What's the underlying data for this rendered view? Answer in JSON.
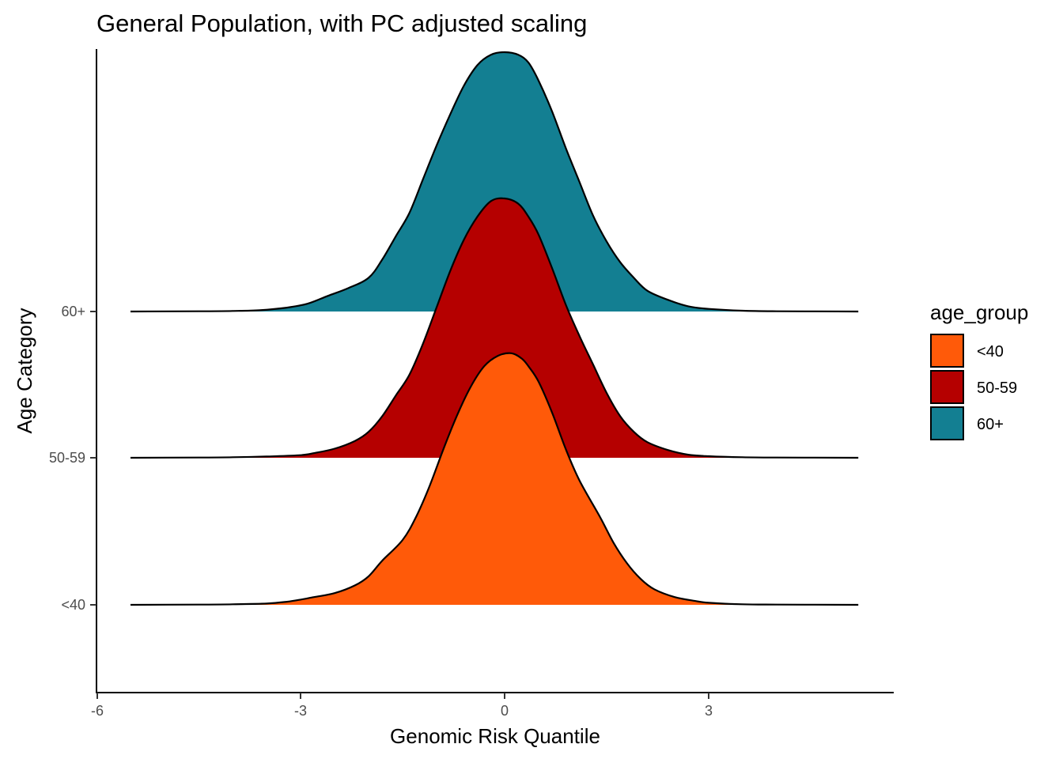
{
  "chart_data": {
    "type": "ridgeline-density",
    "title": "General Population, with PC adjusted scaling",
    "xlabel": "Genomic Risk Quantile",
    "ylabel": "Age Category",
    "xlim": [
      -6,
      5.8
    ],
    "x_ticks": [
      -6,
      -3,
      0,
      3
    ],
    "x_tick_labels": [
      "-6",
      "-3",
      "0",
      "3"
    ],
    "categories": [
      "<40",
      "50-59",
      "60+"
    ],
    "legend": {
      "title": "age_group",
      "placement": "right",
      "entries": [
        "<40",
        "50-59",
        "60+"
      ]
    },
    "grid": false,
    "series": [
      {
        "name": "<40",
        "color": "#FF5A09",
        "points": [
          [
            -5.5,
            0
          ],
          [
            -4.5,
            0.001
          ],
          [
            -4.0,
            0.002
          ],
          [
            -3.5,
            0.005
          ],
          [
            -3.2,
            0.012
          ],
          [
            -3.0,
            0.02
          ],
          [
            -2.8,
            0.03
          ],
          [
            -2.5,
            0.045
          ],
          [
            -2.2,
            0.075
          ],
          [
            -2.0,
            0.11
          ],
          [
            -1.8,
            0.17
          ],
          [
            -1.5,
            0.25
          ],
          [
            -1.3,
            0.34
          ],
          [
            -1.1,
            0.46
          ],
          [
            -0.9,
            0.6
          ],
          [
            -0.7,
            0.73
          ],
          [
            -0.5,
            0.84
          ],
          [
            -0.3,
            0.92
          ],
          [
            -0.1,
            0.96
          ],
          [
            0.1,
            0.97
          ],
          [
            0.25,
            0.95
          ],
          [
            0.35,
            0.92
          ],
          [
            0.5,
            0.86
          ],
          [
            0.7,
            0.74
          ],
          [
            0.9,
            0.6
          ],
          [
            1.1,
            0.48
          ],
          [
            1.4,
            0.34
          ],
          [
            1.6,
            0.24
          ],
          [
            1.8,
            0.16
          ],
          [
            2.0,
            0.1
          ],
          [
            2.2,
            0.06
          ],
          [
            2.5,
            0.03
          ],
          [
            2.8,
            0.015
          ],
          [
            3.0,
            0.008
          ],
          [
            3.5,
            0.002
          ],
          [
            4.0,
            0.001
          ],
          [
            5.2,
            0
          ]
        ]
      },
      {
        "name": "50-59",
        "color": "#B50000",
        "points": [
          [
            -5.5,
            0
          ],
          [
            -4.5,
            0.001
          ],
          [
            -4.0,
            0.002
          ],
          [
            -3.5,
            0.005
          ],
          [
            -3.0,
            0.01
          ],
          [
            -2.8,
            0.018
          ],
          [
            -2.5,
            0.035
          ],
          [
            -2.2,
            0.065
          ],
          [
            -2.0,
            0.1
          ],
          [
            -1.8,
            0.16
          ],
          [
            -1.6,
            0.24
          ],
          [
            -1.4,
            0.32
          ],
          [
            -1.2,
            0.44
          ],
          [
            -1.0,
            0.58
          ],
          [
            -0.8,
            0.72
          ],
          [
            -0.6,
            0.84
          ],
          [
            -0.4,
            0.93
          ],
          [
            -0.2,
            0.99
          ],
          [
            0.0,
            1.0
          ],
          [
            0.2,
            0.98
          ],
          [
            0.35,
            0.93
          ],
          [
            0.5,
            0.86
          ],
          [
            0.7,
            0.73
          ],
          [
            0.9,
            0.59
          ],
          [
            1.1,
            0.47
          ],
          [
            1.3,
            0.36
          ],
          [
            1.5,
            0.25
          ],
          [
            1.7,
            0.16
          ],
          [
            1.9,
            0.1
          ],
          [
            2.1,
            0.06
          ],
          [
            2.4,
            0.03
          ],
          [
            2.7,
            0.012
          ],
          [
            3.0,
            0.006
          ],
          [
            3.5,
            0.002
          ],
          [
            4.0,
            0.001
          ],
          [
            5.2,
            0
          ]
        ]
      },
      {
        "name": "60+",
        "color": "#137F92",
        "points": [
          [
            -5.5,
            0
          ],
          [
            -4.5,
            0.001
          ],
          [
            -4.0,
            0.002
          ],
          [
            -3.6,
            0.005
          ],
          [
            -3.2,
            0.015
          ],
          [
            -2.9,
            0.03
          ],
          [
            -2.6,
            0.06
          ],
          [
            -2.3,
            0.09
          ],
          [
            -2.0,
            0.13
          ],
          [
            -1.8,
            0.2
          ],
          [
            -1.6,
            0.29
          ],
          [
            -1.4,
            0.38
          ],
          [
            -1.2,
            0.51
          ],
          [
            -1.0,
            0.64
          ],
          [
            -0.8,
            0.76
          ],
          [
            -0.6,
            0.87
          ],
          [
            -0.4,
            0.95
          ],
          [
            -0.2,
            0.99
          ],
          [
            0.0,
            1.0
          ],
          [
            0.2,
            0.99
          ],
          [
            0.35,
            0.96
          ],
          [
            0.5,
            0.89
          ],
          [
            0.7,
            0.77
          ],
          [
            0.9,
            0.63
          ],
          [
            1.1,
            0.5
          ],
          [
            1.3,
            0.37
          ],
          [
            1.5,
            0.27
          ],
          [
            1.7,
            0.19
          ],
          [
            1.9,
            0.13
          ],
          [
            2.1,
            0.08
          ],
          [
            2.4,
            0.045
          ],
          [
            2.7,
            0.02
          ],
          [
            3.0,
            0.01
          ],
          [
            3.5,
            0.003
          ],
          [
            4.0,
            0.001
          ],
          [
            5.2,
            0
          ]
        ]
      }
    ]
  }
}
